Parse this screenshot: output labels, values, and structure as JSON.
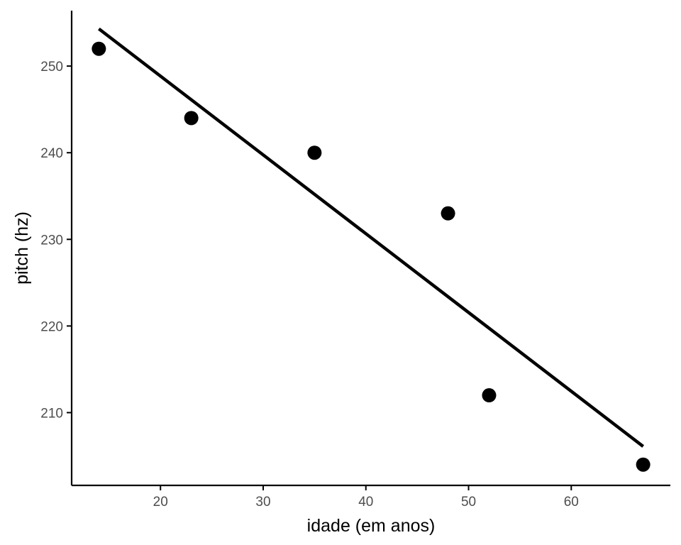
{
  "chart_data": {
    "type": "scatter",
    "title": "",
    "xlabel": "idade (em anos)",
    "ylabel": "pitch (hz)",
    "xlim": [
      11.35,
      69.65
    ],
    "ylim": [
      201.6,
      256.4
    ],
    "xticks": [
      20,
      30,
      40,
      50,
      60
    ],
    "yticks": [
      210,
      220,
      230,
      240,
      250
    ],
    "grid": false,
    "legend": "none",
    "series": [
      {
        "x": [
          14,
          23,
          35,
          48,
          52,
          67
        ],
        "y": [
          252,
          244,
          240,
          233,
          212,
          204
        ]
      }
    ],
    "fit_line": {
      "x_start": 14,
      "y_start": 254.3,
      "x_end": 67,
      "y_end": 206.1
    },
    "colors": {
      "points": "#000000",
      "line": "#000000",
      "axis": "#000000",
      "tick_text": "#4d4d4d"
    }
  }
}
